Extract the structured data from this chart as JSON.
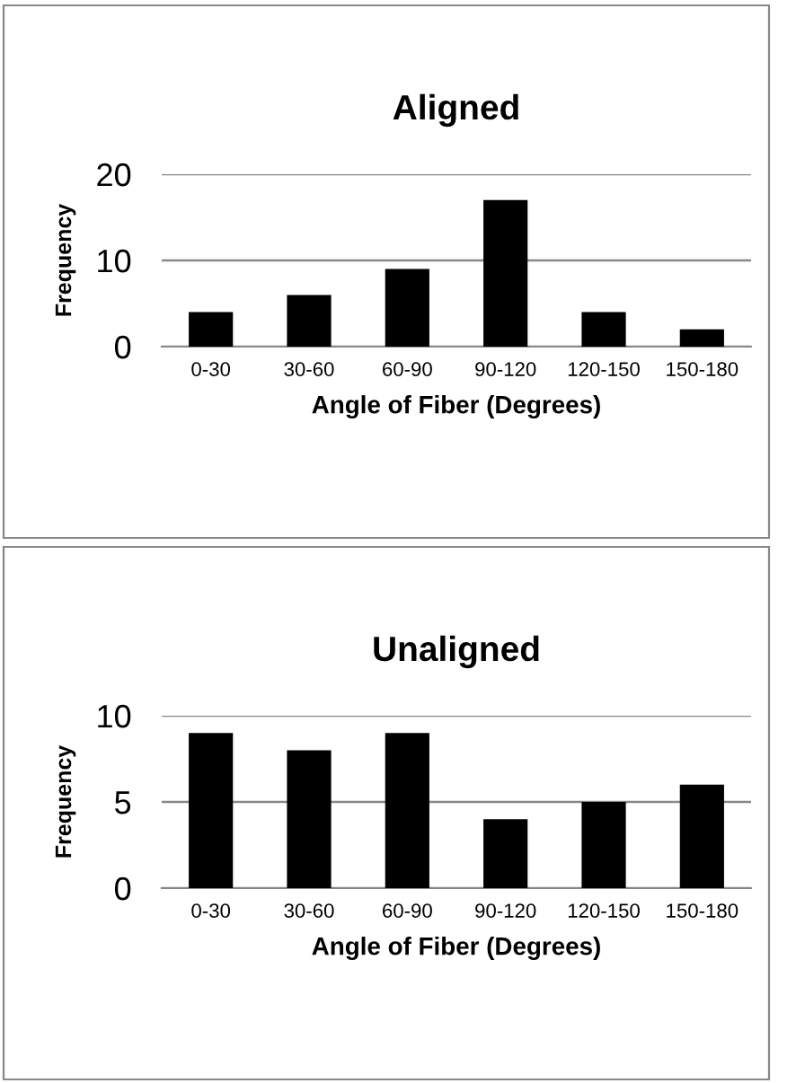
{
  "chart_data": [
    {
      "type": "bar",
      "title": "Aligned",
      "xlabel": "Angle of Fiber (Degrees)",
      "ylabel": "Frequency",
      "categories": [
        "0-30",
        "30-60",
        "60-90",
        "90-120",
        "120-150",
        "150-180"
      ],
      "values": [
        4,
        6,
        9,
        17,
        4,
        2
      ],
      "color": "#000000",
      "ylim": [
        0,
        20
      ],
      "yticks": [
        0,
        10,
        20
      ],
      "grid": "y",
      "legend": false
    },
    {
      "type": "bar",
      "title": "Unaligned",
      "xlabel": "Angle of Fiber (Degrees)",
      "ylabel": "Frequency",
      "categories": [
        "0-30",
        "30-60",
        "60-90",
        "90-120",
        "120-150",
        "150-180"
      ],
      "values": [
        9,
        8,
        9,
        4,
        5,
        6
      ],
      "color": "#000000",
      "ylim": [
        0,
        10
      ],
      "yticks": [
        0,
        5,
        10
      ],
      "grid": "y",
      "legend": false
    }
  ]
}
